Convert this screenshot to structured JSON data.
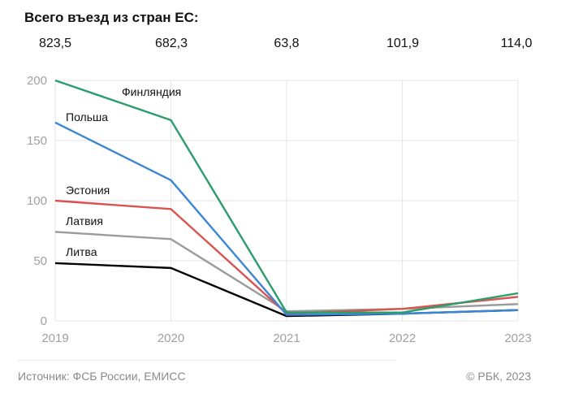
{
  "header": {
    "title": "Всего въезд из стран ЕС:"
  },
  "totals": [
    "823,5",
    "682,3",
    "63,8",
    "101,9",
    "114,0"
  ],
  "footer": {
    "source": "Источник: ФСБ России, ЕМИСС",
    "copyright": "© РБК, 2023"
  },
  "chart_data": {
    "type": "line",
    "title": "Всего въезд из стран ЕС:",
    "xlabel": "",
    "ylabel": "",
    "x": [
      "2019",
      "2020",
      "2021",
      "2022",
      "2023"
    ],
    "ylim": [
      0,
      200
    ],
    "yticks": [
      0,
      50,
      100,
      150,
      200
    ],
    "grid": true,
    "legend": "inline-labels",
    "series": [
      {
        "name": "Финляндия",
        "color": "#2a9d6a",
        "values": [
          200,
          167,
          7,
          7,
          23
        ]
      },
      {
        "name": "Польша",
        "color": "#3a86d4",
        "values": [
          165,
          117,
          5,
          6,
          9
        ]
      },
      {
        "name": "Эстония",
        "color": "#d9534f",
        "values": [
          100,
          93,
          6,
          10,
          20
        ]
      },
      {
        "name": "Латвия",
        "color": "#9b9b9b",
        "values": [
          74,
          68,
          8,
          10,
          14
        ]
      },
      {
        "name": "Литва",
        "color": "#000000",
        "values": [
          48,
          44,
          4,
          6,
          9
        ]
      }
    ],
    "annotations": {
      "totals_row_label": "Всего въезд из стран ЕС:",
      "totals": [
        "823,5",
        "682,3",
        "63,8",
        "101,9",
        "114,0"
      ]
    }
  }
}
